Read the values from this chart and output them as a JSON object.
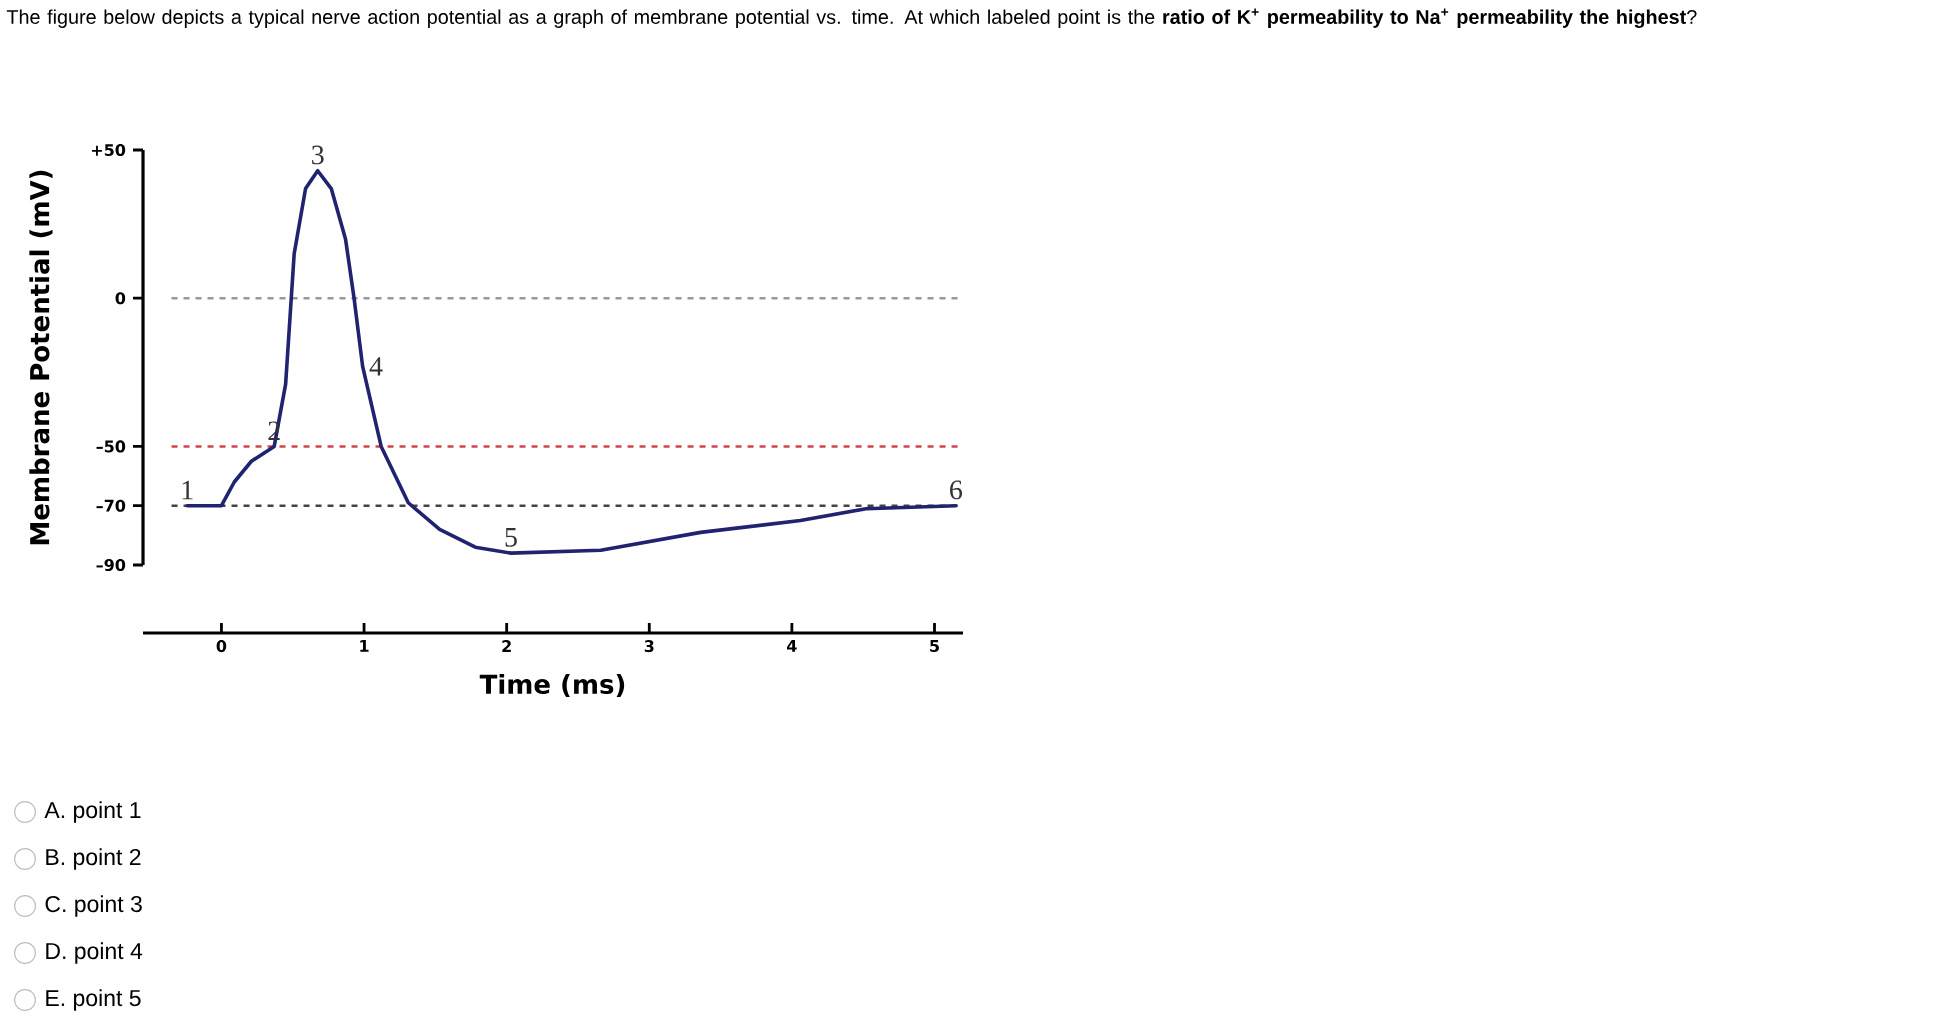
{
  "chart_data": {
    "type": "line",
    "title": "The figure below depicts a typical nerve action potential as a graph of membrane potential vs. time. At which labeled point is the **ratio of K$^{+}$ permeability to Na$^{+}$ permeability the highest**?",
    "xlabel": "Time (ms)",
    "ylabel": "Membrane Potential (mV)",
    "series": [
      {
        "color": "#1f2370",
        "x": [
          -0.24,
          0,
          0.09,
          0.21,
          0.37,
          0.45,
          0.51,
          0.59,
          0.675,
          0.77,
          0.87,
          0.93,
          0.99,
          1.12,
          1.31,
          1.53,
          1.78,
          2.03,
          2.66,
          3.36,
          4.06,
          4.52,
          5.15
        ],
        "values": [
          -70,
          -70,
          -62,
          -55,
          -50,
          -29,
          15,
          37,
          43,
          37,
          20,
          0,
          -23,
          -50,
          -69,
          -78,
          -84,
          -86,
          -85,
          -79,
          -75,
          -71,
          -70
        ]
      }
    ],
    "xlim": [
      -0.55,
      5.2
    ],
    "ylim": [
      -90,
      50
    ],
    "xticks": [
      0,
      1,
      2,
      3,
      4,
      5
    ],
    "yticks": [
      {
        "value": -90,
        "label": "–90"
      },
      {
        "value": -70,
        "label": "–70"
      },
      {
        "value": -50,
        "label": "–50"
      },
      0,
      {
        "value": 50,
        "label": "+50"
      }
    ],
    "ref_lines": [
      {
        "axis": "y",
        "value": 0,
        "color": "#999999",
        "line_style": "dashed"
      },
      {
        "axis": "y",
        "value": -50,
        "color": "#d04848",
        "line_style": "dashed"
      },
      {
        "axis": "y",
        "value": -70,
        "color": "#444444",
        "line_style": "dashed"
      }
    ],
    "annotations": [
      {
        "text": "1",
        "x": -0.24,
        "y": -70
      },
      {
        "text": "2",
        "x": 0.37,
        "y": -50
      },
      {
        "text": "3",
        "x": 0.675,
        "y": 43
      },
      {
        "text": "4",
        "x": 0.99,
        "y": -23
      },
      {
        "text": "5",
        "x": 2.03,
        "y": -86
      },
      {
        "text": "6",
        "x": 5.15,
        "y": -70
      },
      "A. point 1",
      "B. point 2",
      "C. point 3",
      "D. point 4",
      "E. point 5"
    ],
    "grid": false,
    "marker": "none",
    "line_style": "solid"
  }
}
